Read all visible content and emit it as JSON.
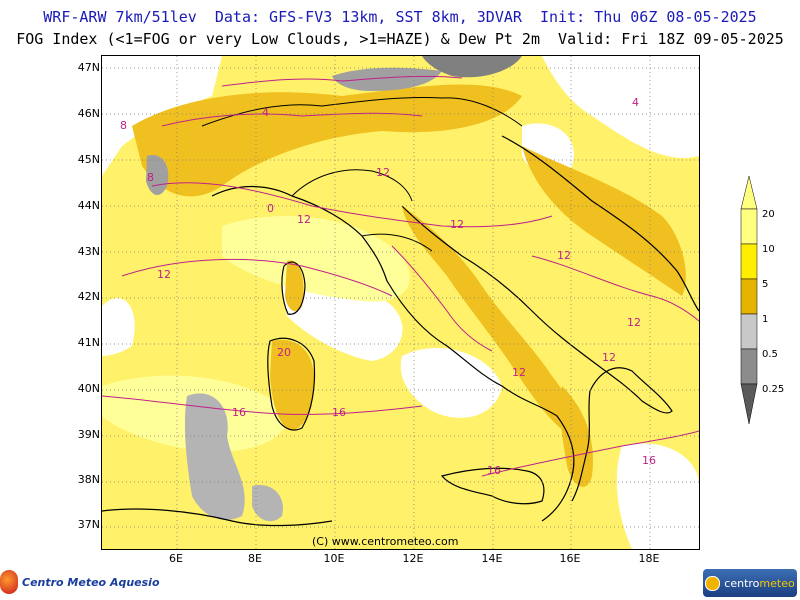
{
  "header": {
    "line1": "WRF-ARW 7km/51lev  Data: GFS-FV3 13km, SST 8km, 3DVAR  Init: Thu 06Z 08-05-2025",
    "line2": "FOG Index (<1=FOG or very Low Clouds, >1=HAZE) & Dew Pt 2m  Valid: Fri 18Z 09-05-2025"
  },
  "map": {
    "lat_labels": [
      "47N",
      "46N",
      "45N",
      "44N",
      "43N",
      "42N",
      "41N",
      "40N",
      "39N",
      "38N",
      "37N"
    ],
    "lon_labels": [
      "6E",
      "8E",
      "10E",
      "12E",
      "14E",
      "16E",
      "18E"
    ],
    "copyright": "(C) www.centrometeo.com",
    "contour_labels": [
      "0",
      "4",
      "8",
      "12",
      "16",
      "20"
    ]
  },
  "legend": {
    "labels": [
      "20",
      "10",
      "5",
      "1",
      "0.5",
      "0.25"
    ],
    "colors": [
      "#ffff80",
      "#ffee00",
      "#e6b400",
      "#c8c8c8",
      "#8c8c8c",
      "#5a5a5a"
    ]
  },
  "logos": {
    "left": "Centro Meteo Aquesio",
    "right_a": "centro",
    "right_b": "meteo"
  }
}
